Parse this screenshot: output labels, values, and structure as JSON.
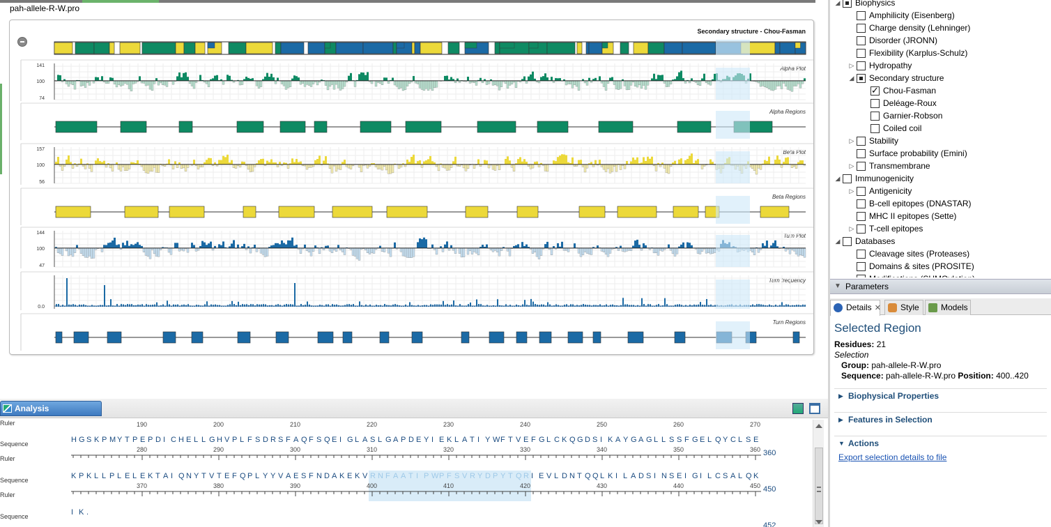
{
  "editor": {
    "file_title": "pah-allele-R-W.pro",
    "ss_title": "Secondary structure - Chou-Fasman",
    "tracks": {
      "alpha_plot": {
        "label": "Alpha Plot",
        "ymax": "141",
        "ymid": "100",
        "ymin": "74"
      },
      "alpha_regions": {
        "label": "Alpha Regions"
      },
      "beta_plot": {
        "label": "Beta Plot",
        "ymax": "157",
        "ymid": "100",
        "ymin": "56"
      },
      "beta_regions": {
        "label": "Beta Regions"
      },
      "turn_plot": {
        "label": "Turn Plot",
        "ymax": "144",
        "ymid": "100",
        "ymin": "47"
      },
      "turn_frequency": {
        "label": "Turn frequency",
        "ymid": "0.0"
      },
      "turn_regions": {
        "label": "Turn Regions"
      }
    },
    "colors": {
      "alpha": "#0e8a63",
      "beta": "#ecd93a",
      "turn": "#1b6aa5",
      "selection": "#cde8f8"
    }
  },
  "analysis": {
    "tab_label": "Analysis",
    "row_labels": {
      "ruler": "Ruler",
      "sequence": "Sequence"
    },
    "top_ruler": [
      "190",
      "200",
      "210",
      "220",
      "230",
      "240",
      "250",
      "260",
      "270"
    ],
    "rows": [
      {
        "sequence": "HGSKPMYTPEPDICHELLGHVPLFSDRSFAQFSQEIGLASLGAPDEYIEKLATIYWFTVEFGLCKQGDSIKAYGAGLLSSFGELQYCLSE",
        "ruler": [
          "280",
          "290",
          "300",
          "310",
          "320",
          "330",
          "340",
          "350",
          "360"
        ],
        "end": "360"
      },
      {
        "sequence": "KPKLLPLELEKTAIQNYTVTEFQPLYYVAESFNDAKEKVRNFAATIPWPFSVRYDPYTQRIEVLDNTQQLKILADSINSEIGILCSALQK",
        "ruler": [
          "370",
          "380",
          "390",
          "400",
          "410",
          "420",
          "430",
          "440",
          "450"
        ],
        "end": "450"
      },
      {
        "sequence": "IK.",
        "ruler": [],
        "end": "452"
      }
    ]
  },
  "tree": {
    "items": [
      {
        "label": "Biophysics",
        "level": 1,
        "expander": "open",
        "check": "partial"
      },
      {
        "label": "Amphilicity (Eisenberg)",
        "level": 2,
        "expander": "",
        "check": "none"
      },
      {
        "label": "Charge density (Lehninger)",
        "level": 2,
        "expander": "",
        "check": "none"
      },
      {
        "label": "Disorder (JRONN)",
        "level": 2,
        "expander": "",
        "check": "none"
      },
      {
        "label": "Flexibility (Karplus-Schulz)",
        "level": 2,
        "expander": "",
        "check": "none"
      },
      {
        "label": "Hydropathy",
        "level": 2,
        "expander": "closed",
        "check": "none"
      },
      {
        "label": "Secondary structure",
        "level": 2,
        "expander": "open",
        "check": "partial"
      },
      {
        "label": "Chou-Fasman",
        "level": 3,
        "expander": "",
        "check": "checked"
      },
      {
        "label": "Deléage-Roux",
        "level": 3,
        "expander": "",
        "check": "none"
      },
      {
        "label": "Garnier-Robson",
        "level": 3,
        "expander": "",
        "check": "none"
      },
      {
        "label": "Coiled coil",
        "level": 3,
        "expander": "",
        "check": "none"
      },
      {
        "label": "Stability",
        "level": 2,
        "expander": "closed",
        "check": "none"
      },
      {
        "label": "Surface probability (Emini)",
        "level": 2,
        "expander": "",
        "check": "none"
      },
      {
        "label": "Transmembrane",
        "level": 2,
        "expander": "closed",
        "check": "none"
      },
      {
        "label": "Immunogenicity",
        "level": 1,
        "expander": "open",
        "check": "none"
      },
      {
        "label": "Antigenicity",
        "level": 2,
        "expander": "closed",
        "check": "none"
      },
      {
        "label": "B-cell epitopes (DNASTAR)",
        "level": 2,
        "expander": "",
        "check": "none"
      },
      {
        "label": "MHC II epitopes (Sette)",
        "level": 2,
        "expander": "",
        "check": "none"
      },
      {
        "label": "T-cell epitopes",
        "level": 2,
        "expander": "closed",
        "check": "none"
      },
      {
        "label": "Databases",
        "level": 1,
        "expander": "open",
        "check": "none"
      },
      {
        "label": "Cleavage sites (Proteases)",
        "level": 2,
        "expander": "",
        "check": "none"
      },
      {
        "label": "Domains & sites (PROSITE)",
        "level": 2,
        "expander": "",
        "check": "none"
      },
      {
        "label": "Modifications (SUMOylation)",
        "level": 2,
        "expander": "",
        "check": "none"
      }
    ]
  },
  "params": {
    "label": "Parameters"
  },
  "details_tabs": [
    {
      "label": "Details"
    },
    {
      "label": "Style"
    },
    {
      "label": "Models"
    }
  ],
  "details": {
    "title": "Selected Region",
    "residues_label": "Residues:",
    "residues_value": "21",
    "selection_label": "Selection",
    "group_label": "Group:",
    "group_value": "pah-allele-R-W.pro",
    "sequence_label": "Sequence:",
    "sequence_value": "pah-allele-R-W.pro",
    "position_label": "Position:",
    "position_value": "400..420",
    "sections": [
      "Biophysical Properties",
      "Features in Selection",
      "Actions"
    ],
    "export_link": "Export selection details to file"
  }
}
